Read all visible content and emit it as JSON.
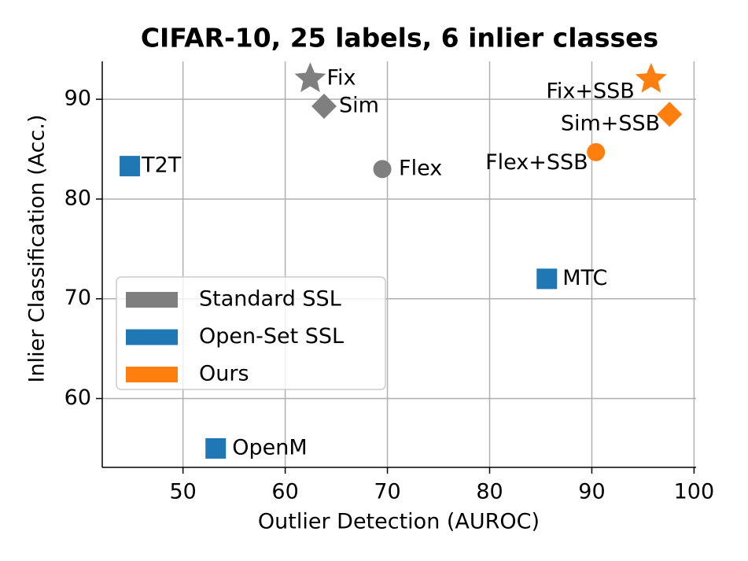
{
  "chart_data": {
    "type": "scatter",
    "title": "CIFAR-10, 25 labels, 6 inlier classes",
    "x_label": "Outlier Detection (AUROC)",
    "y_label": "Inlier Classification (Acc.)",
    "xlim": [
      42.1,
      100.2
    ],
    "ylim": [
      53.1,
      93.8
    ],
    "xticks": [
      50,
      60,
      70,
      80,
      90,
      100
    ],
    "yticks": [
      60,
      70,
      80,
      90
    ],
    "grid": true,
    "legend": "lower left",
    "series": [
      {
        "name": "Standard SSL",
        "color": "#7f7f7f",
        "x": [
          62.45,
          63.8,
          69.5
        ],
        "values": [
          92.05,
          89.3,
          83.0
        ],
        "labels": [
          "Fix",
          "Sim",
          "Flex"
        ],
        "markers": [
          "star",
          "diamond",
          "circle"
        ]
      },
      {
        "name": "Open-Set SSL",
        "color": "#1f77b4",
        "x": [
          44.8,
          85.6,
          53.2
        ],
        "values": [
          83.3,
          72.0,
          55.0
        ],
        "labels": [
          "T2T",
          "MTC",
          "OpenM"
        ],
        "markers": [
          "square",
          "square",
          "square"
        ]
      },
      {
        "name": "Ours",
        "color": "#ff7f0e",
        "x": [
          95.8,
          97.6,
          90.4
        ],
        "values": [
          92.0,
          88.5,
          84.7
        ],
        "labels": [
          "Fix+SSB",
          "Sim+SSB",
          "Flex+SSB"
        ],
        "markers": [
          "star",
          "diamond",
          "circle"
        ]
      }
    ]
  }
}
